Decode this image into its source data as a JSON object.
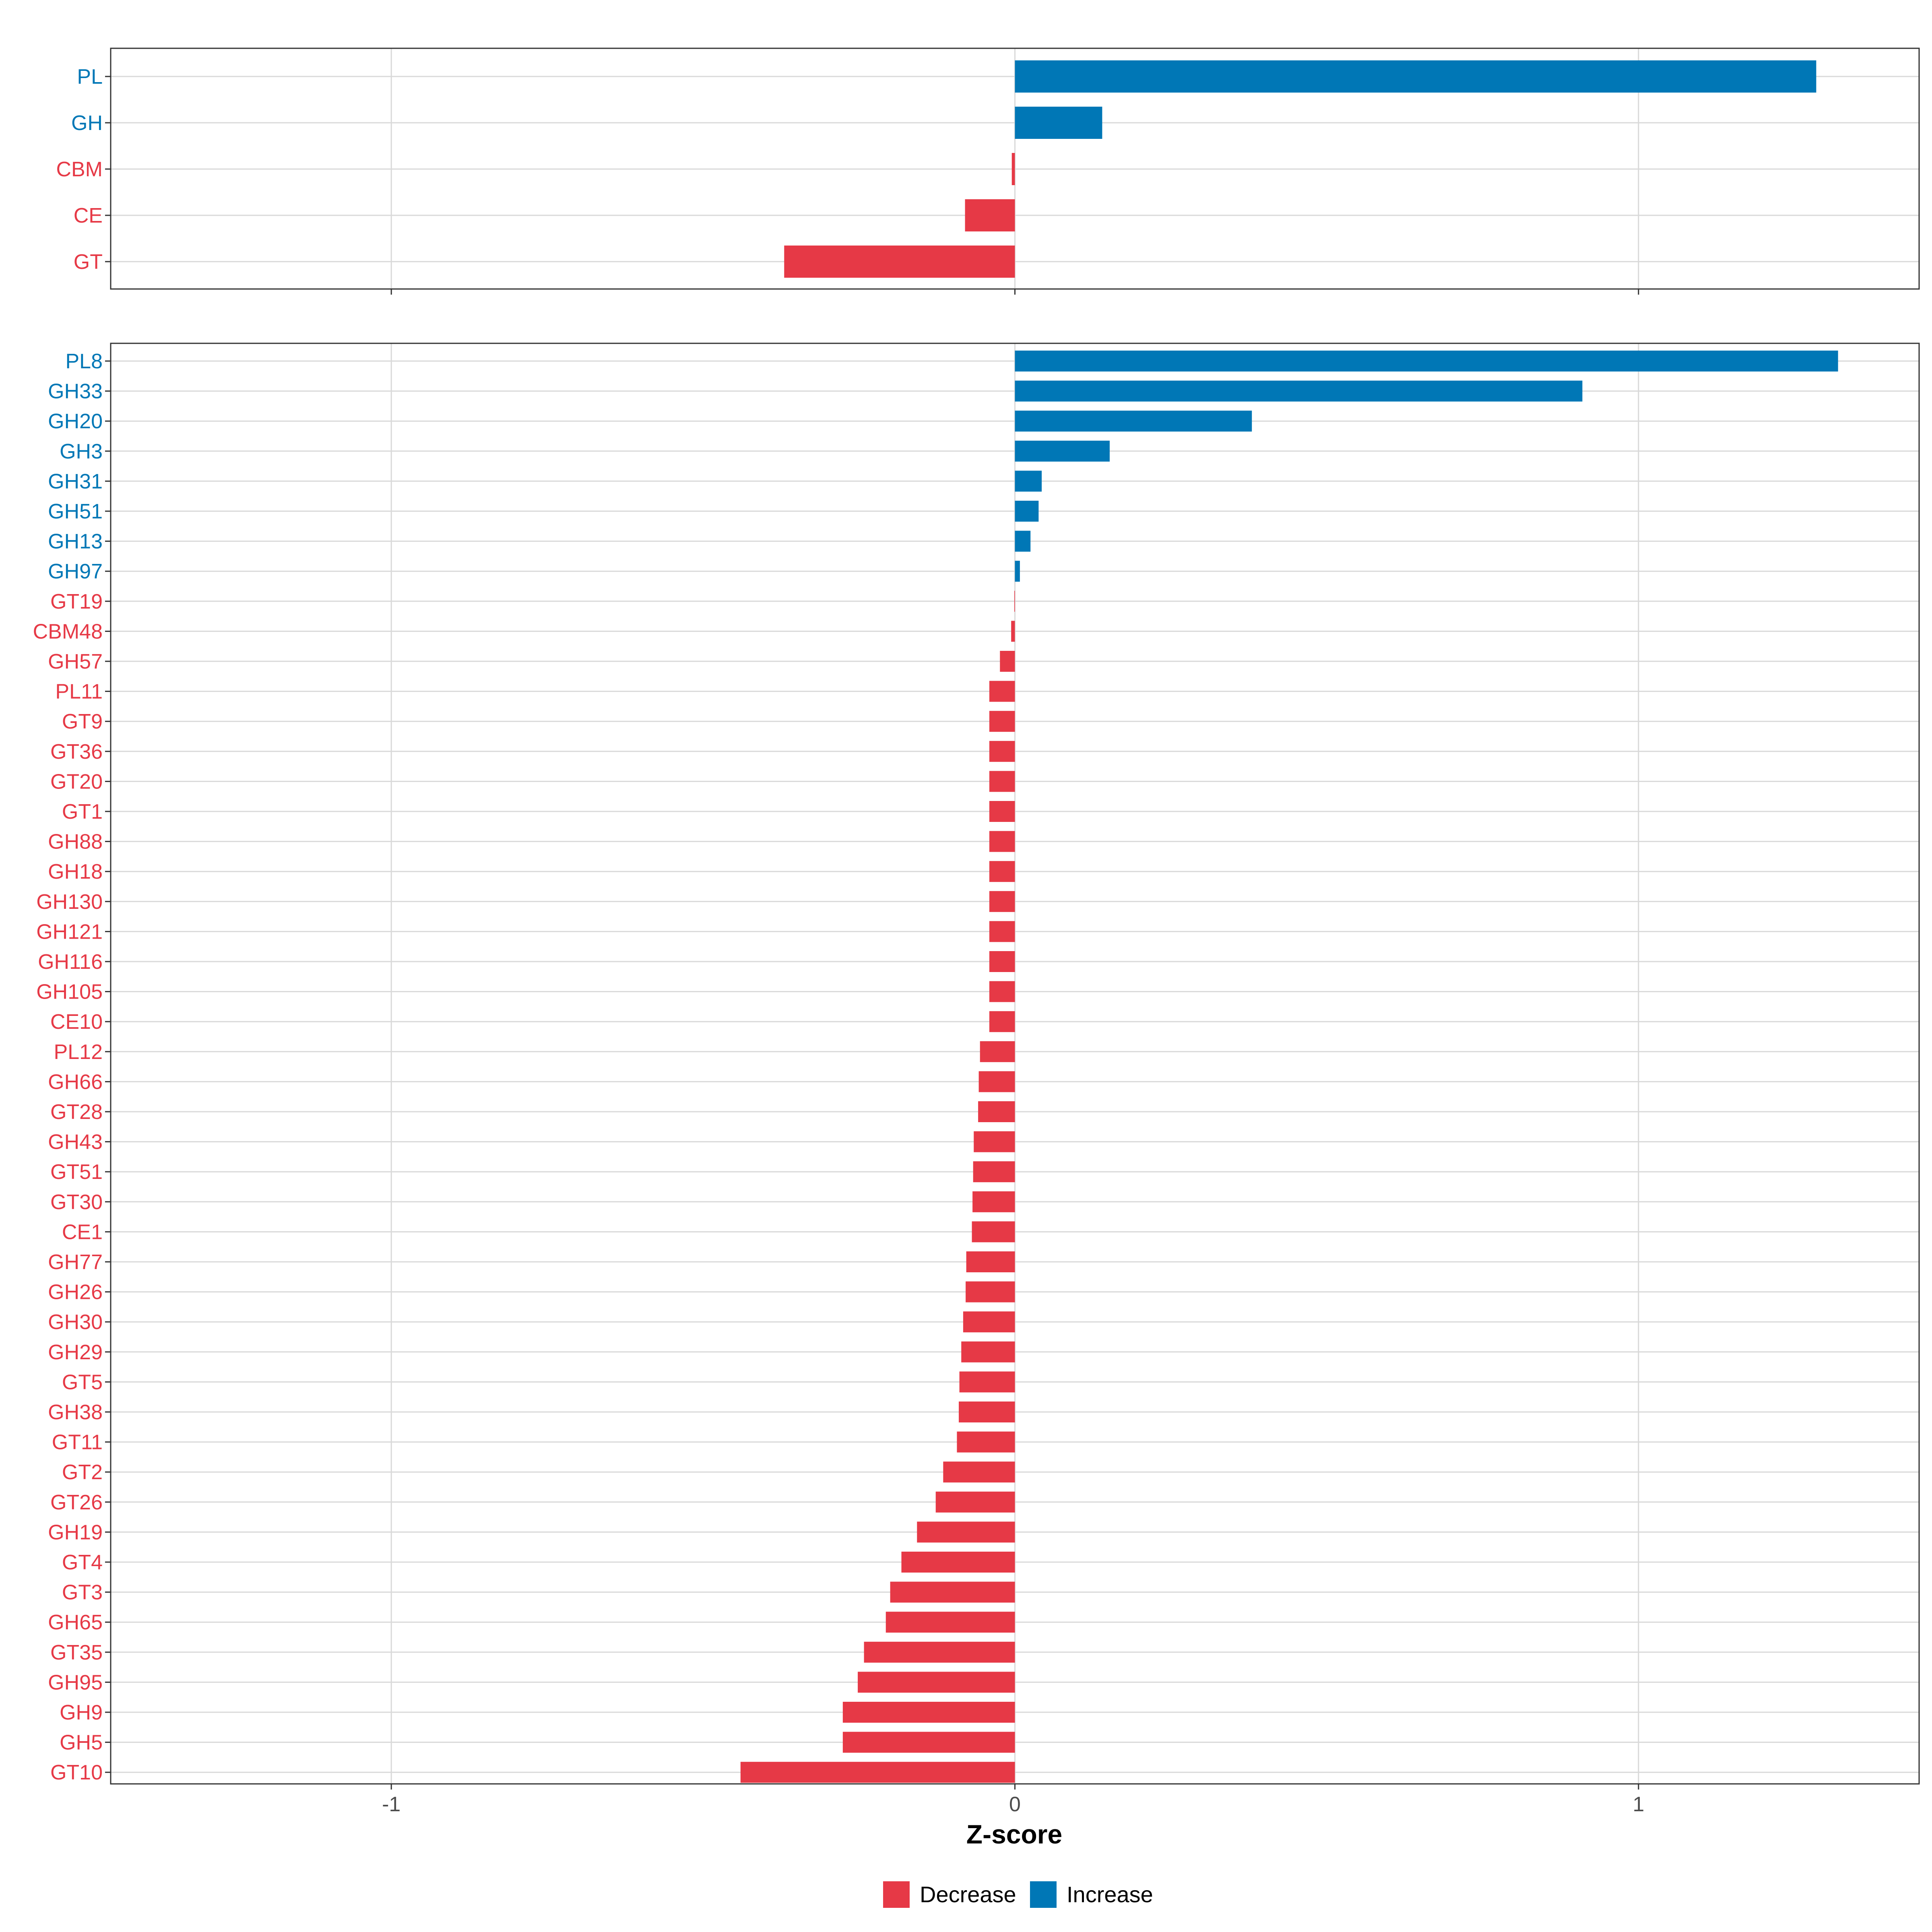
{
  "colors": {
    "decrease": "#E63946",
    "increase": "#0077B6",
    "grid": "#D9D9D9",
    "border": "#333333"
  },
  "chart_data": [
    {
      "type": "bar",
      "orientation": "horizontal",
      "title": "",
      "xlabel": "Z-score",
      "ylabel": "",
      "xlim": [
        -1.45,
        1.45
      ],
      "xticks": [
        -1,
        0,
        1
      ],
      "grid": true,
      "categories": [
        "PL",
        "GH",
        "CBM",
        "CE",
        "GT"
      ],
      "values": [
        1.285,
        0.14,
        -0.005,
        -0.08,
        -0.37
      ],
      "direction": [
        "Increase",
        "Increase",
        "Decrease",
        "Decrease",
        "Decrease"
      ]
    },
    {
      "type": "bar",
      "orientation": "horizontal",
      "title": "",
      "xlabel": "Z-score",
      "ylabel": "",
      "xlim": [
        -1.45,
        1.45
      ],
      "xticks": [
        -1,
        0,
        1
      ],
      "grid": true,
      "categories": [
        "PL8",
        "GH33",
        "GH20",
        "GH3",
        "GH31",
        "GH51",
        "GH13",
        "GH97",
        "GT19",
        "CBM48",
        "GH57",
        "PL11",
        "GT9",
        "GT36",
        "GT20",
        "GT1",
        "GH88",
        "GH18",
        "GH130",
        "GH121",
        "GH116",
        "GH105",
        "CE10",
        "PL12",
        "GH66",
        "GT28",
        "GH43",
        "GT51",
        "GT30",
        "CE1",
        "GH77",
        "GH26",
        "GH30",
        "GH29",
        "GT5",
        "GH38",
        "GT11",
        "GT2",
        "GT26",
        "GH19",
        "GT4",
        "GT3",
        "GH65",
        "GT35",
        "GH95",
        "GH9",
        "GH5",
        "GT10"
      ],
      "values": [
        1.32,
        0.91,
        0.38,
        0.152,
        0.043,
        0.038,
        0.025,
        0.008,
        -0.001,
        -0.006,
        -0.024,
        -0.041,
        -0.041,
        -0.041,
        -0.041,
        -0.041,
        -0.041,
        -0.041,
        -0.041,
        -0.041,
        -0.041,
        -0.041,
        -0.041,
        -0.056,
        -0.058,
        -0.059,
        -0.066,
        -0.067,
        -0.068,
        -0.069,
        -0.078,
        -0.079,
        -0.083,
        -0.086,
        -0.089,
        -0.09,
        -0.093,
        -0.115,
        -0.127,
        -0.157,
        -0.182,
        -0.2,
        -0.207,
        -0.242,
        -0.252,
        -0.276,
        -0.276,
        -0.44
      ],
      "direction": [
        "Increase",
        "Increase",
        "Increase",
        "Increase",
        "Increase",
        "Increase",
        "Increase",
        "Increase",
        "Decrease",
        "Decrease",
        "Decrease",
        "Decrease",
        "Decrease",
        "Decrease",
        "Decrease",
        "Decrease",
        "Decrease",
        "Decrease",
        "Decrease",
        "Decrease",
        "Decrease",
        "Decrease",
        "Decrease",
        "Decrease",
        "Decrease",
        "Decrease",
        "Decrease",
        "Decrease",
        "Decrease",
        "Decrease",
        "Decrease",
        "Decrease",
        "Decrease",
        "Decrease",
        "Decrease",
        "Decrease",
        "Decrease",
        "Decrease",
        "Decrease",
        "Decrease",
        "Decrease",
        "Decrease",
        "Decrease",
        "Decrease",
        "Decrease",
        "Decrease",
        "Decrease",
        "Decrease"
      ]
    }
  ],
  "x_tick_labels": [
    "-1",
    "0",
    "1"
  ],
  "x_axis_title": "Z-score",
  "legend": {
    "position": "bottom",
    "items": [
      {
        "label": "Decrease",
        "color": "#E63946"
      },
      {
        "label": "Increase",
        "color": "#0077B6"
      }
    ]
  }
}
